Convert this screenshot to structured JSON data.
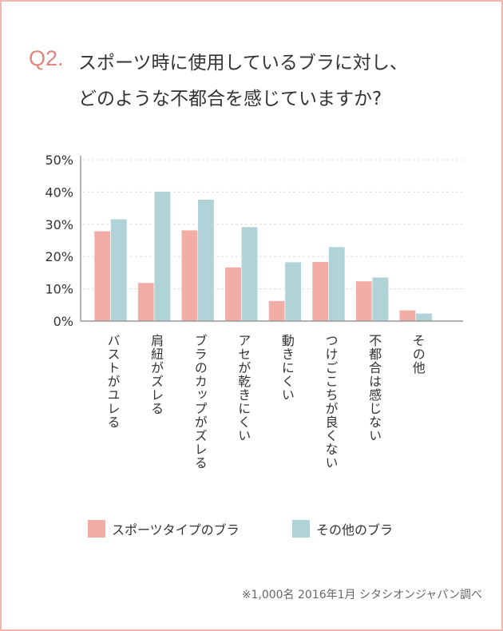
{
  "title": {
    "number": "Q2.",
    "line1": "スポーツ時に使用しているブラに対し、",
    "line2": "どのような不都合を感じていますか?"
  },
  "chart_data": {
    "type": "bar",
    "categories": [
      "バストがユレる",
      "肩紐がズレる",
      "ブラのカップがズレる",
      "アセが乾きにくい",
      "動きにくい",
      "つけごこちが良くない",
      "不都合は感じない",
      "その他"
    ],
    "series": [
      {
        "name": "スポーツタイプのブラ",
        "color": "#f2aea6",
        "values": [
          27.9,
          11.9,
          28.2,
          16.7,
          6.3,
          18.4,
          12.4,
          3.4
        ]
      },
      {
        "name": "その他のブラ",
        "color": "#afd3d6",
        "values": [
          31.6,
          40.2,
          37.7,
          29.2,
          18.3,
          23.0,
          13.6,
          2.4
        ]
      }
    ],
    "ylim": [
      0,
      50
    ],
    "yticks": [
      "0%",
      "10%",
      "20%",
      "30%",
      "40%",
      "50%"
    ],
    "grid": true,
    "legend": "bottom"
  },
  "note": "※1,000名  2016年1月  シタシオンジャパン調べ"
}
